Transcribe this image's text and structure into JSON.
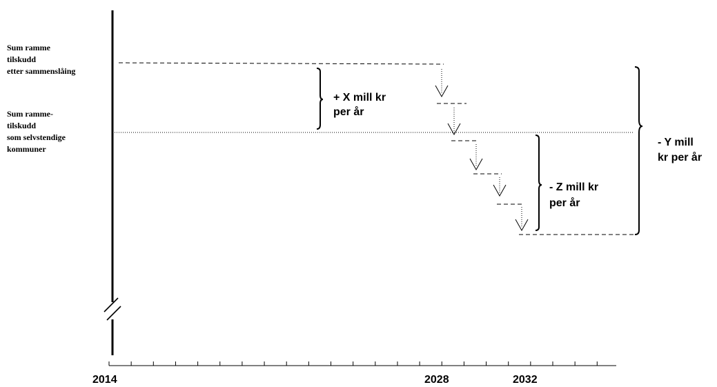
{
  "labels": {
    "merged_sum": [
      "Sum ramme",
      "tilskudd",
      "etter sammenslåing"
    ],
    "independent_sum": [
      "Sum ramme-",
      "tilskudd",
      "som selvstendige",
      "kommuner"
    ],
    "x_amount": [
      "+ X mill kr",
      "per år"
    ],
    "z_amount": [
      "- Z mill kr",
      "per år"
    ],
    "y_amount": [
      "- Y mill",
      "kr per år"
    ]
  },
  "axis": {
    "year_labels": [
      "2014",
      "2028",
      "2032"
    ]
  }
}
